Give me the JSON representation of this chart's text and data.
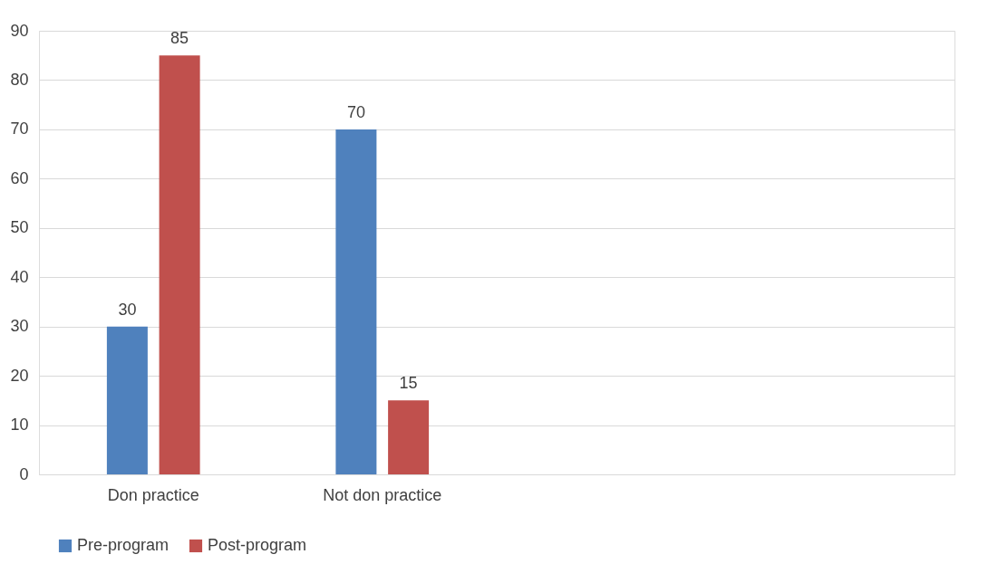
{
  "chart_data": {
    "type": "bar",
    "categories": [
      "Don practice",
      "Not don practice",
      null,
      null
    ],
    "series": [
      {
        "name": "Pre-program",
        "color": "#4f81bd",
        "values": [
          30,
          70,
          null,
          null
        ]
      },
      {
        "name": "Post-program",
        "color": "#c0504d",
        "values": [
          85,
          15,
          null,
          null
        ]
      }
    ],
    "ylim": [
      0,
      90
    ],
    "yticks": [
      0,
      10,
      20,
      30,
      40,
      50,
      60,
      70,
      80,
      90
    ],
    "grid": "y",
    "legend": "bottom",
    "data_labels": true
  }
}
